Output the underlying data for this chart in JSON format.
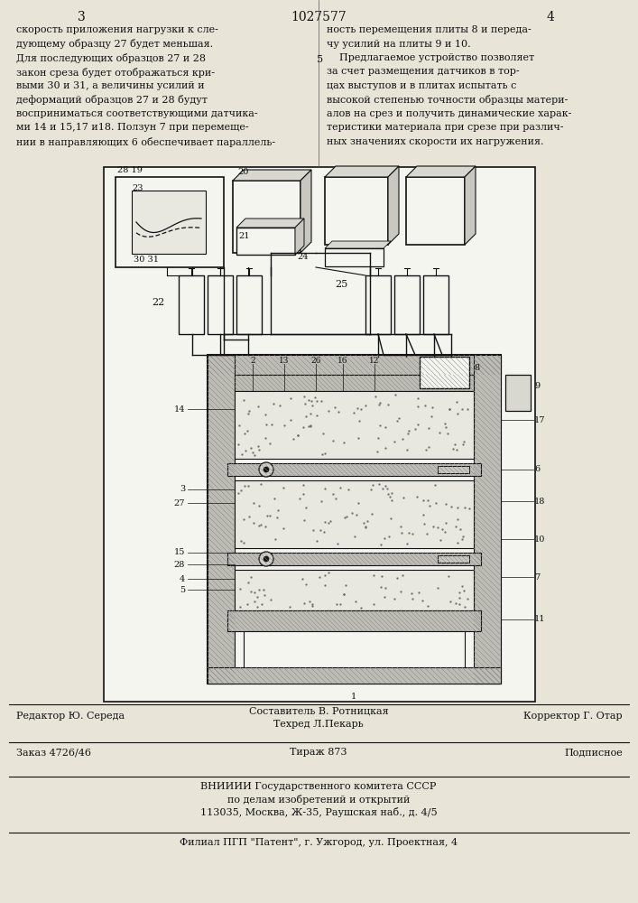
{
  "bg_color": "#e8e4d8",
  "patent_number": "1027577",
  "col_left_num": "3",
  "col_right_num": "4",
  "text_left": [
    "скорость приложения нагрузки к сле-",
    "дующему образцу 27 будет меньшая.",
    "Для последующих образцов 27 и 28",
    "закон среза будет отображаться кри-",
    "выми 30 и 31, а величины усилий и",
    "деформаций образцов 27 и 28 будут",
    "восприниматься соответствующими датчика-",
    "ми 14 и 15,17 и18. Ползун 7 при перемеще-",
    "нии в направляющих 6 обеспечивает параллель-"
  ],
  "text_right_line5": "5",
  "text_right": [
    "ность перемещения плиты 8 и переда-",
    "чу усилий на плиты 9 и 10.",
    "    Предлагаемое устройство позволяет",
    "за счет размещения датчиков в тор-",
    "цах выступов и в плитах испытать с",
    "высокой степенью точности образцы матери-",
    "алов на срез и получить динамические харак-",
    "теристики материала при срезе при различ-",
    "ных значениях скорости их нагружения."
  ],
  "footer_line1_left": "Редактор Ю. Середа",
  "footer_line1_center1": "Составитель В. Ротницкая",
  "footer_line1_center2": "Техред Л.Пекарь",
  "footer_line1_right": "Корректор Г. Отар",
  "footer_line2_left": "Заказ 4726/46",
  "footer_line2_center": "Тираж 873",
  "footer_line2_right": "Подписное",
  "footer_line3": "ВНИИИИ Государственного комитета СССР",
  "footer_line4": "по делам изобретений и открытий",
  "footer_line5": "113035, Москва, Ж-35, Раушская наб., д. 4/5",
  "footer_line6": "Филиал ПГП \"Патент\", г. Ужгород, ул. Проектная, 4"
}
